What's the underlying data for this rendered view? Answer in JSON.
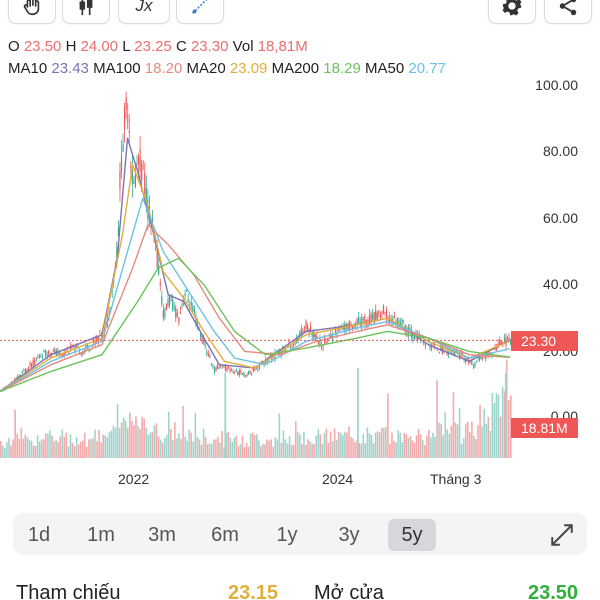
{
  "toolbar": {
    "icons": [
      "hand-icon",
      "candlestick-icon",
      "function-icon",
      "draw-icon",
      "gear-icon",
      "share-icon"
    ],
    "function_label": "Jx"
  },
  "ohlc": {
    "o_label": "O",
    "o_value": "23.50",
    "h_label": "H",
    "h_value": "24.00",
    "l_label": "L",
    "l_value": "23.25",
    "c_label": "C",
    "c_value": "23.30",
    "vol_label": "Vol",
    "vol_value": "18,81M"
  },
  "ma": {
    "ma10_label": "MA10",
    "ma10_value": "23.43",
    "ma100_label": "MA100",
    "ma100_value": "18.20",
    "ma20_label": "MA20",
    "ma20_value": "23.09",
    "ma200_label": "MA200",
    "ma200_value": "18.29",
    "ma50_label": "MA50",
    "ma50_value": "20.77"
  },
  "colors": {
    "up": "#37a99a",
    "down": "#ef5656",
    "ma10": "#7b73b4",
    "ma20": "#e0ae3a",
    "ma50": "#6cc1e6",
    "ma100": "#e48b80",
    "ma200": "#6cc35a",
    "volume_up": "#9dd4cc",
    "volume_down": "#f4aaaa"
  },
  "chart_data": {
    "type": "candlestick",
    "y_ticks": [
      "100.00",
      "80.00",
      "60.00",
      "40.00",
      "20.00",
      "0.00"
    ],
    "ylim": [
      0,
      100
    ],
    "x_ticks": [
      "2022",
      "2024",
      "Tháng 3"
    ],
    "grid": false,
    "last_price": "23.30",
    "last_volume": "18.81M",
    "price_series": [
      [
        0,
        8
      ],
      [
        0.02,
        10
      ],
      [
        0.04,
        13
      ],
      [
        0.06,
        16
      ],
      [
        0.08,
        19
      ],
      [
        0.1,
        20
      ],
      [
        0.12,
        19
      ],
      [
        0.14,
        21
      ],
      [
        0.16,
        20
      ],
      [
        0.18,
        22
      ],
      [
        0.19,
        24
      ],
      [
        0.2,
        26
      ],
      [
        0.21,
        29
      ],
      [
        0.22,
        40
      ],
      [
        0.23,
        52
      ],
      [
        0.235,
        75
      ],
      [
        0.24,
        82
      ],
      [
        0.245,
        92
      ],
      [
        0.25,
        95
      ],
      [
        0.255,
        80
      ],
      [
        0.26,
        68
      ],
      [
        0.27,
        78
      ],
      [
        0.28,
        74
      ],
      [
        0.29,
        62
      ],
      [
        0.3,
        55
      ],
      [
        0.31,
        45
      ],
      [
        0.315,
        38
      ],
      [
        0.32,
        30
      ],
      [
        0.33,
        36
      ],
      [
        0.34,
        33
      ],
      [
        0.35,
        30
      ],
      [
        0.36,
        38
      ],
      [
        0.37,
        35
      ],
      [
        0.38,
        31
      ],
      [
        0.39,
        26
      ],
      [
        0.4,
        22
      ],
      [
        0.41,
        18
      ],
      [
        0.42,
        14
      ],
      [
        0.43,
        16
      ],
      [
        0.44,
        15
      ],
      [
        0.46,
        14
      ],
      [
        0.48,
        13
      ],
      [
        0.5,
        15
      ],
      [
        0.52,
        17
      ],
      [
        0.54,
        19
      ],
      [
        0.56,
        21
      ],
      [
        0.58,
        23
      ],
      [
        0.6,
        28
      ],
      [
        0.62,
        24
      ],
      [
        0.63,
        22
      ],
      [
        0.65,
        25
      ],
      [
        0.67,
        27
      ],
      [
        0.69,
        28
      ],
      [
        0.71,
        29
      ],
      [
        0.73,
        30
      ],
      [
        0.75,
        32
      ],
      [
        0.76,
        30
      ],
      [
        0.78,
        29
      ],
      [
        0.8,
        26
      ],
      [
        0.82,
        24
      ],
      [
        0.84,
        22
      ],
      [
        0.86,
        21
      ],
      [
        0.88,
        20
      ],
      [
        0.9,
        19
      ],
      [
        0.92,
        17
      ],
      [
        0.93,
        16
      ],
      [
        0.94,
        18
      ],
      [
        0.96,
        19
      ],
      [
        0.97,
        21
      ],
      [
        0.98,
        23
      ],
      [
        1.0,
        23.3
      ]
    ],
    "ma_series": {
      "MA10": [
        [
          0,
          8
        ],
        [
          0.1,
          19
        ],
        [
          0.2,
          25
        ],
        [
          0.23,
          48
        ],
        [
          0.25,
          84
        ],
        [
          0.27,
          74
        ],
        [
          0.3,
          56
        ],
        [
          0.33,
          37
        ],
        [
          0.36,
          35
        ],
        [
          0.4,
          24
        ],
        [
          0.43,
          16
        ],
        [
          0.5,
          15
        ],
        [
          0.6,
          26
        ],
        [
          0.7,
          28
        ],
        [
          0.76,
          30
        ],
        [
          0.84,
          22
        ],
        [
          0.92,
          17
        ],
        [
          1.0,
          23.4
        ]
      ],
      "MA20": [
        [
          0,
          8
        ],
        [
          0.1,
          18
        ],
        [
          0.2,
          24
        ],
        [
          0.24,
          55
        ],
        [
          0.26,
          76
        ],
        [
          0.29,
          64
        ],
        [
          0.32,
          44
        ],
        [
          0.36,
          36
        ],
        [
          0.4,
          26
        ],
        [
          0.44,
          17
        ],
        [
          0.5,
          15
        ],
        [
          0.6,
          25
        ],
        [
          0.7,
          28
        ],
        [
          0.76,
          30
        ],
        [
          0.84,
          23
        ],
        [
          0.92,
          18
        ],
        [
          1.0,
          23.1
        ]
      ],
      "MA50": [
        [
          0,
          8
        ],
        [
          0.1,
          17
        ],
        [
          0.2,
          23
        ],
        [
          0.25,
          50
        ],
        [
          0.28,
          66
        ],
        [
          0.32,
          50
        ],
        [
          0.37,
          38
        ],
        [
          0.42,
          26
        ],
        [
          0.46,
          18
        ],
        [
          0.52,
          16
        ],
        [
          0.6,
          23
        ],
        [
          0.7,
          27
        ],
        [
          0.76,
          29
        ],
        [
          0.84,
          24
        ],
        [
          0.92,
          18
        ],
        [
          1.0,
          20.8
        ]
      ],
      "MA100": [
        [
          0,
          8
        ],
        [
          0.1,
          16
        ],
        [
          0.2,
          22
        ],
        [
          0.26,
          45
        ],
        [
          0.29,
          58
        ],
        [
          0.33,
          52
        ],
        [
          0.38,
          43
        ],
        [
          0.43,
          30
        ],
        [
          0.48,
          20
        ],
        [
          0.55,
          19
        ],
        [
          0.62,
          23
        ],
        [
          0.7,
          26
        ],
        [
          0.76,
          28
        ],
        [
          0.84,
          24
        ],
        [
          0.92,
          19
        ],
        [
          1.0,
          18.2
        ]
      ],
      "MA200": [
        [
          0,
          8
        ],
        [
          0.1,
          14
        ],
        [
          0.2,
          19
        ],
        [
          0.27,
          35
        ],
        [
          0.31,
          45
        ],
        [
          0.35,
          48
        ],
        [
          0.4,
          40
        ],
        [
          0.46,
          26
        ],
        [
          0.52,
          19
        ],
        [
          0.6,
          21
        ],
        [
          0.7,
          24
        ],
        [
          0.76,
          26
        ],
        [
          0.84,
          24
        ],
        [
          0.92,
          20
        ],
        [
          1.0,
          18.3
        ]
      ]
    }
  },
  "periods": [
    "1d",
    "1m",
    "3m",
    "6m",
    "1y",
    "3y",
    "5y"
  ],
  "active_period": "5y",
  "bottom": {
    "ref_label": "Tham chiếu",
    "ref_value": "23.15",
    "open_label": "Mở cửa",
    "open_value": "23.50"
  }
}
